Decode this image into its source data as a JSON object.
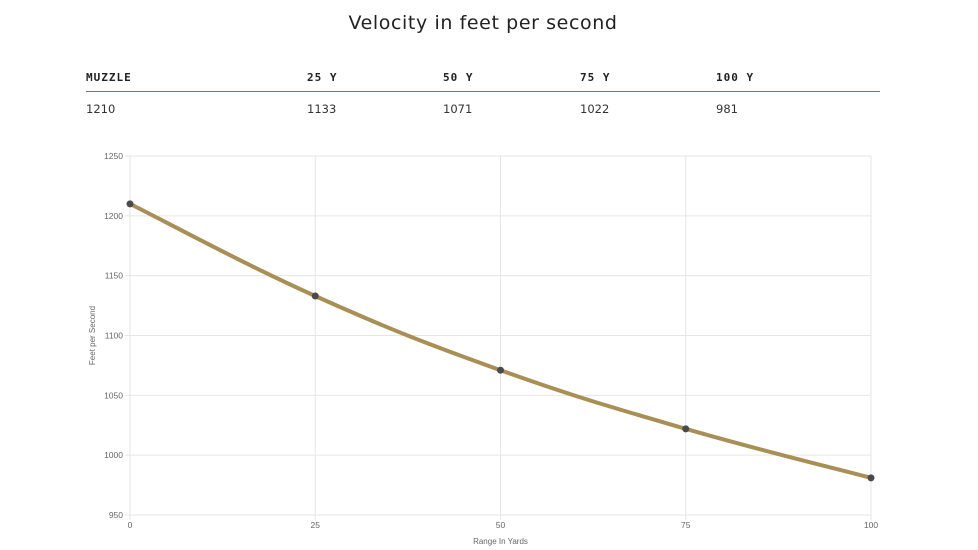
{
  "title": "Velocity in feet per second",
  "table": {
    "headers": [
      "MUZZLE",
      "25 Y",
      "50 Y",
      "75 Y",
      "100 Y"
    ],
    "values": [
      "1210",
      "1133",
      "1071",
      "1022",
      "981"
    ]
  },
  "colors": {
    "line": "#a88f55",
    "point": "#4a4a4a",
    "grid": "#e6e6e6",
    "rule": "#8c7744"
  },
  "chart_data": {
    "type": "line",
    "title": "",
    "xlabel": "Range In Yards",
    "ylabel": "Feet per Second",
    "x": [
      0,
      25,
      50,
      75,
      100
    ],
    "series": [
      {
        "name": "Velocity",
        "values": [
          1210,
          1133,
          1071,
          1022,
          981
        ]
      }
    ],
    "xlim": [
      0,
      100
    ],
    "ylim": [
      950,
      1250
    ],
    "xticks": [
      0,
      25,
      50,
      75,
      100
    ],
    "yticks": [
      950,
      1000,
      1050,
      1100,
      1150,
      1200,
      1250
    ],
    "grid": true,
    "legend": "none"
  }
}
